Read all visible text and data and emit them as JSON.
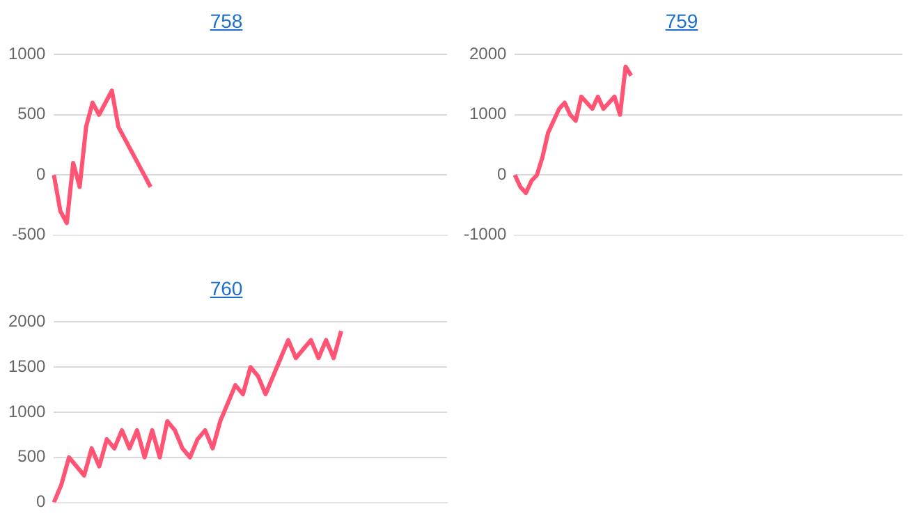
{
  "chart_data": [
    {
      "type": "line",
      "title": "758",
      "categories": [
        null,
        null,
        null,
        null,
        null,
        null,
        null,
        null,
        null,
        null,
        null,
        null,
        null,
        null,
        null,
        null,
        null,
        null,
        null,
        null,
        null,
        null,
        null,
        null,
        null,
        null,
        null,
        null,
        null,
        null,
        null,
        null,
        null,
        null,
        null,
        null,
        null,
        null,
        null,
        null,
        null,
        null,
        null,
        null,
        null,
        null,
        null,
        null,
        null,
        null,
        null,
        null,
        null,
        null,
        null,
        null,
        null,
        null,
        null,
        null,
        null,
        null
      ],
      "series": [
        {
          "color": "#ff5473",
          "values": [
            0,
            -300,
            -400,
            100,
            -100,
            400,
            600,
            500,
            600,
            700,
            400,
            300,
            200,
            100,
            0,
            -100,
            null,
            null,
            null,
            null,
            null,
            null,
            null,
            null,
            null,
            null,
            null,
            null,
            null,
            null,
            null,
            null,
            null,
            null,
            null,
            null,
            null,
            null,
            null,
            null,
            null,
            null,
            null,
            null,
            null,
            null,
            null,
            null,
            null,
            null,
            null,
            null,
            null,
            null,
            null,
            null,
            null,
            null,
            null,
            null,
            null,
            null
          ]
        }
      ],
      "ylim": [
        -500,
        1000
      ],
      "yticks": [
        -500,
        0,
        500,
        1000
      ],
      "grid": "y",
      "legend": false,
      "tick_labels": "y",
      "marker": "none",
      "line_style": "solid"
    },
    {
      "type": "line",
      "title": "759",
      "categories": [
        null,
        null,
        null,
        null,
        null,
        null,
        null,
        null,
        null,
        null,
        null,
        null,
        null,
        null,
        null,
        null,
        null,
        null,
        null,
        null,
        null,
        null,
        null,
        null,
        null,
        null,
        null,
        null,
        null,
        null,
        null,
        null,
        null,
        null,
        null,
        null,
        null,
        null,
        null,
        null,
        null,
        null,
        null,
        null,
        null,
        null,
        null,
        null,
        null,
        null,
        null,
        null,
        null,
        null,
        null,
        null,
        null,
        null,
        null,
        null,
        null,
        null,
        null,
        null,
        null,
        null,
        null,
        null,
        null,
        null,
        null
      ],
      "series": [
        {
          "color": "#ff5473",
          "values": [
            0,
            -200,
            -300,
            -100,
            0,
            300,
            700,
            900,
            1100,
            1200,
            1000,
            900,
            1300,
            1200,
            1100,
            1300,
            1100,
            1200,
            1300,
            1000,
            1800,
            1650,
            null,
            null,
            null,
            null,
            null,
            null,
            null,
            null,
            null,
            null,
            null,
            null,
            null,
            null,
            null,
            null,
            null,
            null,
            null,
            null,
            null,
            null,
            null,
            null,
            null,
            null,
            null,
            null,
            null,
            null,
            null,
            null,
            null,
            null,
            null,
            null,
            null,
            null,
            null,
            null,
            null,
            null,
            null,
            null,
            null,
            null,
            null,
            null,
            null
          ]
        }
      ],
      "ylim": [
        -1000,
        2000
      ],
      "yticks": [
        -1000,
        0,
        1000,
        2000
      ],
      "grid": "y",
      "legend": false,
      "tick_labels": "y",
      "marker": "none",
      "line_style": "solid"
    },
    {
      "type": "line",
      "title": "760",
      "categories": [
        null,
        null,
        null,
        null,
        null,
        null,
        null,
        null,
        null,
        null,
        null,
        null,
        null,
        null,
        null,
        null,
        null,
        null,
        null,
        null,
        null,
        null,
        null,
        null,
        null,
        null,
        null,
        null,
        null,
        null,
        null,
        null,
        null,
        null,
        null,
        null,
        null,
        null,
        null,
        null,
        null,
        null,
        null,
        null,
        null,
        null,
        null,
        null,
        null,
        null,
        null,
        null,
        null
      ],
      "series": [
        {
          "color": "#ff5473",
          "values": [
            0,
            200,
            500,
            400,
            300,
            600,
            400,
            700,
            600,
            800,
            600,
            800,
            500,
            800,
            500,
            900,
            800,
            600,
            500,
            700,
            800,
            600,
            900,
            1100,
            1300,
            1200,
            1500,
            1400,
            1200,
            1400,
            1600,
            1800,
            1600,
            1700,
            1800,
            1600,
            1800,
            1600,
            1900,
            null,
            null,
            null,
            null,
            null,
            null,
            null,
            null,
            null,
            null,
            null,
            null,
            null,
            null
          ]
        }
      ],
      "ylim": [
        0,
        2000
      ],
      "yticks": [
        0,
        500,
        1000,
        1500,
        2000
      ],
      "grid": "y",
      "legend": false,
      "tick_labels": "y",
      "marker": "none",
      "line_style": "solid"
    }
  ]
}
